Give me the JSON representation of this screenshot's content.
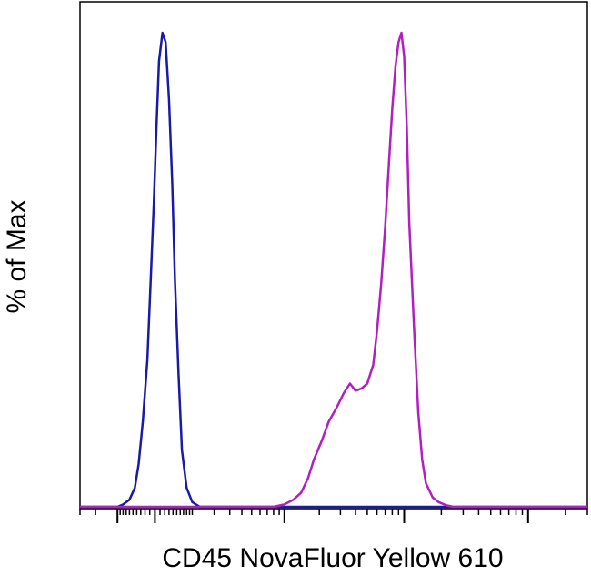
{
  "chart_data": {
    "type": "line",
    "title": "",
    "xlabel": "CD45 NovaFluor Yellow 610",
    "ylabel": "% of Max",
    "x_scale": "log",
    "xlim": [
      -300,
      300000
    ],
    "ylim": [
      0,
      100
    ],
    "grid": false,
    "legend": "none",
    "series": [
      {
        "color": "#1a1aa8",
        "x": [
          -100,
          -80,
          -60,
          -45,
          -35,
          -25,
          -15,
          -8,
          -2,
          3,
          8,
          15,
          22,
          30,
          38,
          45,
          55,
          65,
          80,
          100,
          130
        ],
        "y": [
          0,
          0.5,
          1.5,
          4,
          9,
          18,
          31,
          48,
          64,
          80,
          94,
          100,
          98,
          86,
          68,
          48,
          28,
          12,
          4,
          1,
          0
        ]
      },
      {
        "color": "#b020c0",
        "x": [
          800,
          1000,
          1200,
          1400,
          1600,
          1800,
          2100,
          2400,
          2800,
          3200,
          3600,
          4000,
          4500,
          5000,
          5600,
          6000,
          6500,
          7000,
          7500,
          8000,
          8500,
          9000,
          9500,
          10000,
          10500,
          11000,
          12000,
          13000,
          14000,
          15000,
          17000,
          19000,
          22000,
          25000
        ],
        "y": [
          0,
          0.5,
          1.5,
          3,
          6,
          10,
          14,
          18,
          21,
          24,
          26,
          24.5,
          25,
          26,
          30,
          37,
          47,
          59,
          72,
          84,
          93,
          98,
          100,
          95,
          80,
          60,
          38,
          20,
          10,
          5,
          2,
          1,
          0.3,
          0
        ]
      }
    ]
  }
}
